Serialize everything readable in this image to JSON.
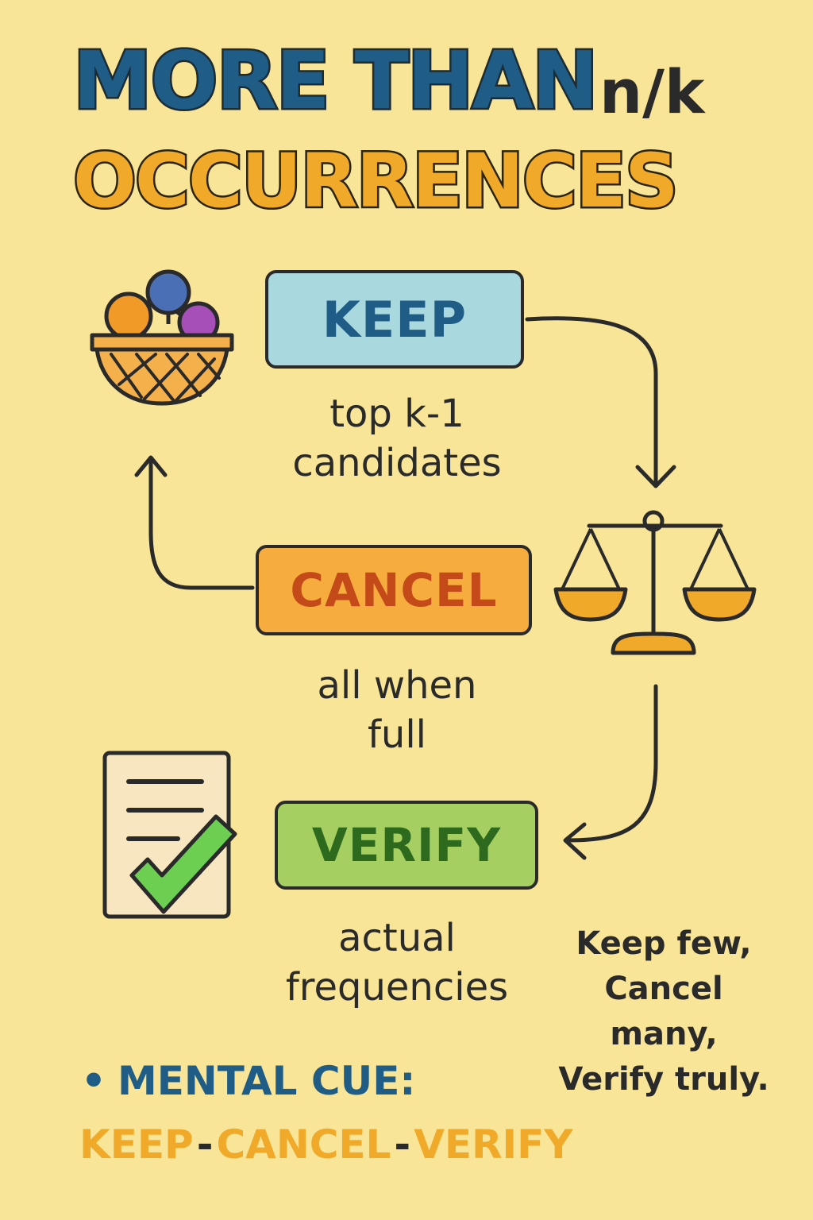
{
  "title": {
    "line1": "MORE THAN",
    "nk": "n/k",
    "line2": "OCCURRENCES"
  },
  "steps": [
    {
      "label": "KEEP",
      "caption_1": "top k-1",
      "caption_2": "candidates"
    },
    {
      "label": "CANCEL",
      "caption_1": "all when",
      "caption_2": "full"
    },
    {
      "label": "VERIFY",
      "caption_1": "actual",
      "caption_2": "frequencies"
    }
  ],
  "side_note": "Keep few, Cancel many, Verify truly.",
  "mental_cue": {
    "bullet": "•",
    "label": "MENTAL CUE:",
    "chain": [
      "KEEP",
      "CANCEL",
      "VERIFY"
    ],
    "separator": "-"
  },
  "icons": [
    "basket-icon",
    "balance-scale-icon",
    "checklist-document-icon"
  ],
  "colors": {
    "background": "#f8e597",
    "keep": "#a9d8df",
    "cancel": "#f6ad3e",
    "verify": "#a6cf62",
    "title_blue": "#1f5d87",
    "title_orange": "#f0a928"
  }
}
